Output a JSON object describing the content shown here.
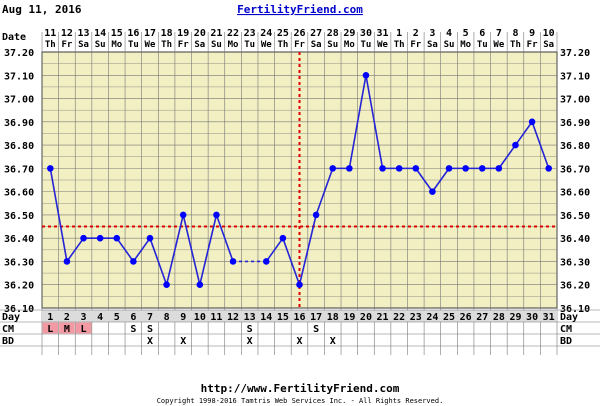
{
  "header": {
    "date": "Aug 11, 2016",
    "site_title": "FertilityFriend.com"
  },
  "row_labels": {
    "date": "Date",
    "day": "Day",
    "cm": "CM",
    "bd": "BD"
  },
  "dates": [
    {
      "num": "11",
      "dow": "Th"
    },
    {
      "num": "12",
      "dow": "Fr"
    },
    {
      "num": "13",
      "dow": "Sa"
    },
    {
      "num": "14",
      "dow": "Su"
    },
    {
      "num": "15",
      "dow": "Mo"
    },
    {
      "num": "16",
      "dow": "Tu"
    },
    {
      "num": "17",
      "dow": "We"
    },
    {
      "num": "18",
      "dow": "Th"
    },
    {
      "num": "19",
      "dow": "Fr"
    },
    {
      "num": "20",
      "dow": "Sa"
    },
    {
      "num": "21",
      "dow": "Su"
    },
    {
      "num": "22",
      "dow": "Mo"
    },
    {
      "num": "23",
      "dow": "Tu"
    },
    {
      "num": "24",
      "dow": "We"
    },
    {
      "num": "25",
      "dow": "Th"
    },
    {
      "num": "26",
      "dow": "Fr"
    },
    {
      "num": "27",
      "dow": "Sa"
    },
    {
      "num": "28",
      "dow": "Su"
    },
    {
      "num": "29",
      "dow": "Mo"
    },
    {
      "num": "30",
      "dow": "Tu"
    },
    {
      "num": "31",
      "dow": "We"
    },
    {
      "num": "1",
      "dow": "Th"
    },
    {
      "num": "2",
      "dow": "Fr"
    },
    {
      "num": "3",
      "dow": "Sa"
    },
    {
      "num": "4",
      "dow": "Su"
    },
    {
      "num": "5",
      "dow": "Mo"
    },
    {
      "num": "6",
      "dow": "Tu"
    },
    {
      "num": "7",
      "dow": "We"
    },
    {
      "num": "8",
      "dow": "Th"
    },
    {
      "num": "9",
      "dow": "Fr"
    },
    {
      "num": "10",
      "dow": "Sa"
    }
  ],
  "chart_data": {
    "type": "line",
    "title": "",
    "xlabel": "Day",
    "ylabel": "",
    "x": [
      1,
      2,
      3,
      4,
      5,
      6,
      7,
      8,
      9,
      10,
      11,
      12,
      13,
      14,
      15,
      16,
      17,
      18,
      19,
      20,
      21,
      22,
      23,
      24,
      25,
      26,
      27,
      28,
      29,
      30,
      31
    ],
    "ylim": [
      36.1,
      37.2
    ],
    "y_ticks": [
      "36.10",
      "36.20",
      "36.30",
      "36.40",
      "36.50",
      "36.60",
      "36.70",
      "36.80",
      "36.90",
      "37.00",
      "37.10",
      "37.20"
    ],
    "series": [
      {
        "values": [
          36.7,
          36.3,
          36.4,
          36.4,
          36.4,
          36.3,
          36.4,
          36.2,
          36.5,
          36.2,
          36.5,
          36.3,
          null,
          36.3,
          36.4,
          36.2,
          36.5,
          36.7,
          36.7,
          37.1,
          36.7,
          36.7,
          36.7,
          36.6,
          36.7,
          36.7,
          36.7,
          36.7,
          36.8,
          36.9,
          36.7
        ],
        "dashed_gap": [
          12,
          14
        ]
      }
    ],
    "coverline": 36.45,
    "ovulation_day": 16,
    "grid": true
  },
  "cm": [
    "L",
    "M",
    "L",
    "",
    "",
    "S",
    "S",
    "",
    "",
    "",
    "",
    "",
    "S",
    "",
    "",
    "",
    "S",
    "",
    "",
    "",
    "",
    "",
    "",
    "",
    "",
    "",
    "",
    "",
    "",
    "",
    ""
  ],
  "bd": [
    "",
    "",
    "",
    "",
    "",
    "",
    "X",
    "",
    "X",
    "",
    "",
    "",
    "X",
    "",
    "",
    "X",
    "",
    "X",
    "",
    "",
    "",
    "",
    "",
    "",
    "",
    "",
    "",
    "",
    "",
    "",
    ""
  ],
  "colors": {
    "plot_bg": "#f2efc2",
    "grid": "#777777",
    "line": "#2424d6",
    "point": "#0000ff",
    "coverline": "#dd0000",
    "ovulation": "#dd0000",
    "header_blue": "#0000cc",
    "day_row_bg": "#dcdcdc",
    "menses_bg": "#f29aa4"
  },
  "footer": {
    "url": "http://www.FertilityFriend.com",
    "copyright": "Copyright 1998-2016 Tamtris Web Services Inc. - All Rights Reserved."
  }
}
